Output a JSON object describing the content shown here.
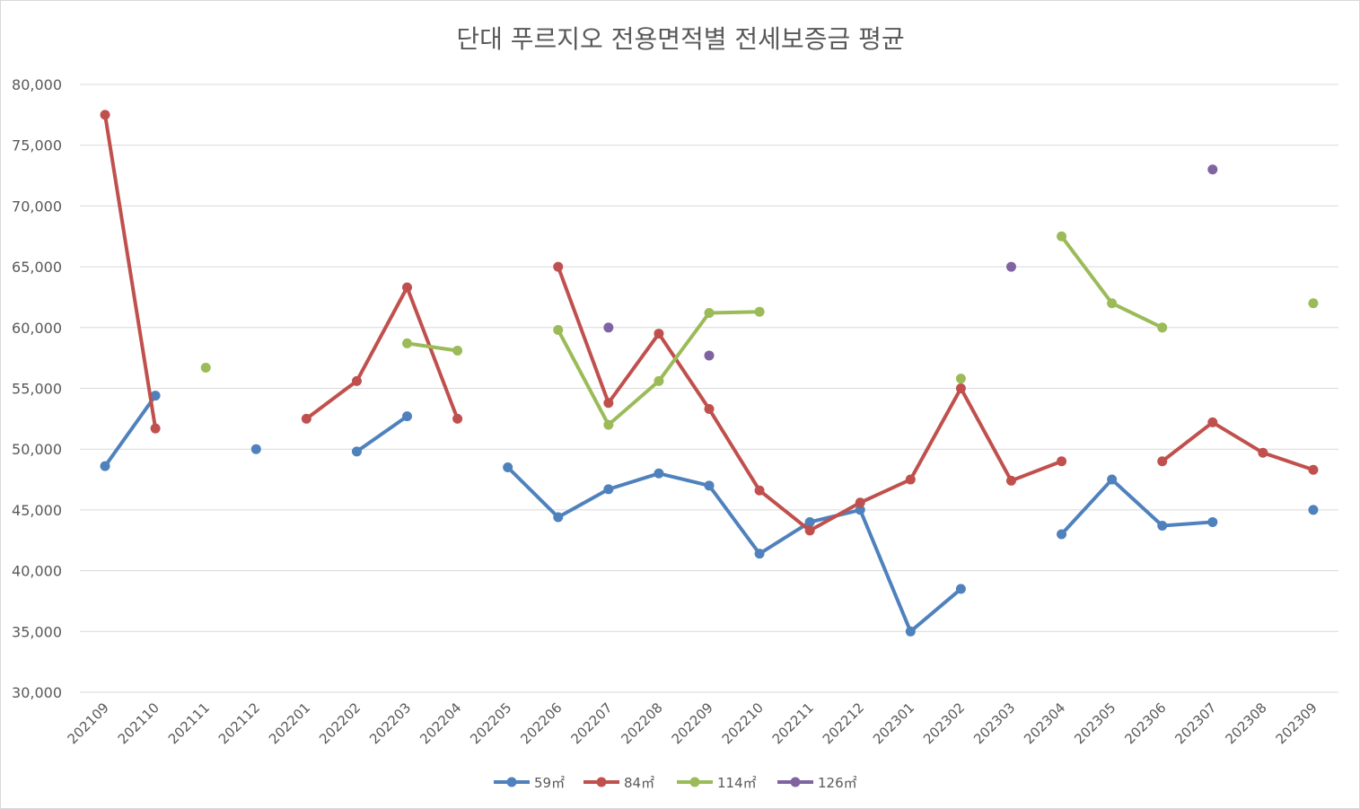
{
  "chart_data": {
    "type": "line",
    "title": "단대 푸르지오 전용면적별 전세보증금 평균",
    "xlabel": "",
    "ylabel": "",
    "ylim": [
      30000,
      80000
    ],
    "yticks": [
      30000,
      35000,
      40000,
      45000,
      50000,
      55000,
      60000,
      65000,
      70000,
      75000,
      80000
    ],
    "ytick_labels": [
      "30,000",
      "35,000",
      "40,000",
      "45,000",
      "50,000",
      "55,000",
      "60,000",
      "65,000",
      "70,000",
      "75,000",
      "80,000"
    ],
    "grid": true,
    "legend_position": "bottom",
    "categories": [
      "202109",
      "202110",
      "202111",
      "202112",
      "202201",
      "202202",
      "202203",
      "202204",
      "202205",
      "202206",
      "202207",
      "202208",
      "202209",
      "202210",
      "202211",
      "202212",
      "202301",
      "202302",
      "202303",
      "202304",
      "202305",
      "202306",
      "202307",
      "202308",
      "202309"
    ],
    "series": [
      {
        "name": "59㎡",
        "color": "#4f81bd",
        "values": [
          48600,
          54400,
          null,
          50000,
          null,
          49800,
          52700,
          null,
          48500,
          44400,
          46700,
          48000,
          47000,
          41400,
          44000,
          45000,
          35000,
          38500,
          null,
          43000,
          47500,
          43700,
          44000,
          null,
          45000
        ]
      },
      {
        "name": "84㎡",
        "color": "#c0504d",
        "values": [
          77500,
          51700,
          null,
          null,
          52500,
          55600,
          63300,
          52500,
          null,
          65000,
          53800,
          59500,
          53300,
          46600,
          43300,
          45600,
          47500,
          55000,
          47400,
          49000,
          null,
          49000,
          52200,
          49700,
          48300
        ]
      },
      {
        "name": "114㎡",
        "color": "#9bbb59",
        "values": [
          null,
          null,
          56700,
          null,
          null,
          null,
          58700,
          58100,
          null,
          59800,
          52000,
          55600,
          61200,
          61300,
          null,
          null,
          null,
          55800,
          null,
          67500,
          62000,
          60000,
          null,
          null,
          62000
        ]
      },
      {
        "name": "126㎡",
        "color": "#8064a2",
        "values": [
          null,
          null,
          null,
          null,
          null,
          null,
          null,
          null,
          null,
          null,
          60000,
          null,
          57700,
          null,
          null,
          null,
          null,
          null,
          65000,
          null,
          null,
          null,
          73000,
          null,
          null
        ]
      }
    ]
  }
}
